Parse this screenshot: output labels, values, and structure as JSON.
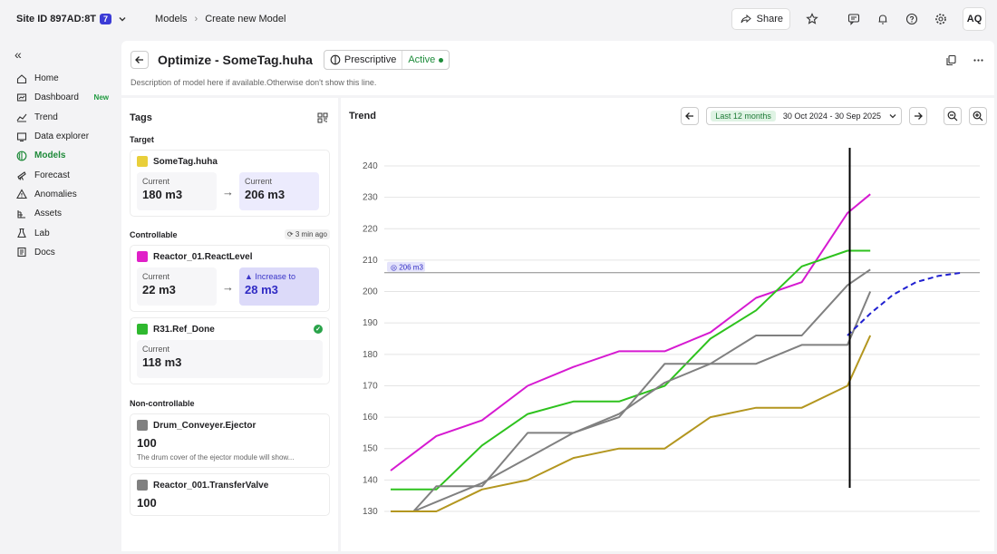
{
  "topbar": {
    "site_label": "Site ID 897AD:8T",
    "site_badge": "7",
    "breadcrumb": [
      "Models",
      "Create new Model"
    ],
    "share_label": "Share",
    "avatar_initials": "AQ"
  },
  "sidebar": {
    "items": [
      {
        "label": "Home",
        "icon": "home-icon"
      },
      {
        "label": "Dashboard",
        "icon": "dashboard-icon",
        "badge": "New"
      },
      {
        "label": "Trend",
        "icon": "trend-icon"
      },
      {
        "label": "Data explorer",
        "icon": "data-explorer-icon"
      },
      {
        "label": "Models",
        "icon": "models-icon",
        "active": true
      },
      {
        "label": "Forecast",
        "icon": "forecast-icon"
      },
      {
        "label": "Anomalies",
        "icon": "anomalies-icon"
      },
      {
        "label": "Assets",
        "icon": "assets-icon"
      },
      {
        "label": "Lab",
        "icon": "lab-icon"
      },
      {
        "label": "Docs",
        "icon": "docs-icon"
      }
    ]
  },
  "header": {
    "title": "Optimize - SomeTag.huha",
    "model_type": "Prescriptive",
    "status": "Active",
    "description": "Description of model here if available.Otherwise don't show this line."
  },
  "tags": {
    "title": "Tags",
    "target_label": "Target",
    "target": {
      "name": "SomeTag.huha",
      "color": "#e9cf3a",
      "from_label": "Current",
      "from_value": "180 m3",
      "to_label": "Current",
      "to_value": "206 m3"
    },
    "controllable_label": "Controllable",
    "refresh_label": "3 min ago",
    "controllable": [
      {
        "name": "Reactor_01.ReactLevel",
        "color": "#e020c8",
        "from_label": "Current",
        "from_value": "22 m3",
        "to_label": "Increase to",
        "to_value": "28 m3"
      },
      {
        "name": "R31.Ref_Done",
        "color": "#2eb82e",
        "current_label": "Current",
        "current_value": "118 m3"
      }
    ],
    "noncontrollable_label": "Non-controllable",
    "noncontrollable": [
      {
        "name": "Drum_Conveyer.Ejector",
        "color": "#808080",
        "value": "100",
        "description": "The drum cover of the ejector module will show..."
      },
      {
        "name": "Reactor_001.TransferValve",
        "color": "#808080",
        "value": "100"
      }
    ]
  },
  "trend": {
    "title": "Trend",
    "range_tag": "Last 12 months",
    "range_dates": "30 Oct 2024 - 30 Sep 2025"
  },
  "chart_data": {
    "type": "line",
    "ylim": [
      130,
      240
    ],
    "yticks": [
      130,
      140,
      150,
      160,
      170,
      180,
      190,
      200,
      210,
      220,
      230,
      240
    ],
    "xlim": [
      0,
      12.5
    ],
    "reference_line": {
      "y": 206,
      "label": "206 m3"
    },
    "now_x": 10.05,
    "series": [
      {
        "color": "#d61ad1",
        "x": [
          0,
          1,
          2,
          3,
          4,
          5,
          6,
          7,
          8,
          9,
          10,
          10.5
        ],
        "y": [
          143,
          154,
          159,
          170,
          176,
          181,
          181,
          187,
          198,
          203,
          225,
          231
        ]
      },
      {
        "color": "#2ec21e",
        "x": [
          0,
          1,
          2,
          3,
          4,
          5,
          6,
          7,
          8,
          9,
          10,
          10.5
        ],
        "y": [
          137,
          137,
          151,
          161,
          165,
          165,
          170,
          185,
          194,
          208,
          213,
          213
        ]
      },
      {
        "color": "#808080",
        "x": [
          0,
          0.5,
          1,
          2,
          3,
          4,
          5,
          6,
          7,
          8,
          9,
          10,
          10.5
        ],
        "y": [
          130,
          130,
          138,
          138,
          155,
          155,
          160,
          177,
          177,
          186,
          186,
          202,
          207
        ]
      },
      {
        "color": "#808080",
        "x": [
          0.5,
          1,
          2,
          3,
          4,
          5,
          6,
          7,
          8,
          9,
          10,
          10.5
        ],
        "y": [
          130,
          133,
          139,
          147,
          155,
          161,
          171,
          177,
          177,
          183,
          183,
          200
        ]
      },
      {
        "color": "#b3961f",
        "x": [
          0,
          1,
          2,
          3,
          4,
          5,
          6,
          7,
          8,
          9,
          10,
          10.5
        ],
        "y": [
          130,
          130,
          137,
          140,
          147,
          150,
          150,
          160,
          163,
          163,
          170,
          186
        ]
      },
      {
        "color": "#2020d0",
        "dashed": true,
        "x": [
          10,
          10.5,
          11,
          11.5,
          12,
          12.5
        ],
        "y": [
          186,
          193,
          199,
          203,
          205,
          206
        ]
      }
    ]
  }
}
